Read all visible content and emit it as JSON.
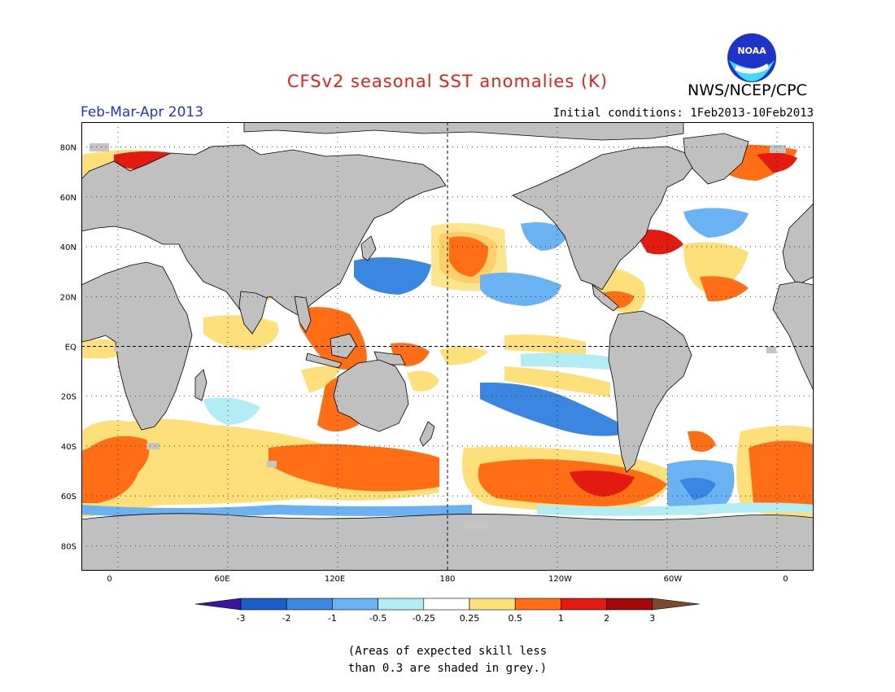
{
  "title": "CFSv2 seasonal SST anomalies (K)",
  "agency": "NWS/NCEP/CPC",
  "logo_text": "NOAA",
  "period": "Feb-Mar-Apr 2013",
  "initial_conditions": "Initial conditions: 1Feb2013-10Feb2013",
  "note_line1": "(Areas of expected skill less",
  "note_line2": "than 0.3 are shaded in grey.)",
  "lat_ticks": [
    {
      "label": "80N",
      "lat": 80
    },
    {
      "label": "60N",
      "lat": 60
    },
    {
      "label": "40N",
      "lat": 40
    },
    {
      "label": "20N",
      "lat": 20
    },
    {
      "label": "EQ",
      "lat": 0
    },
    {
      "label": "20S",
      "lat": -20
    },
    {
      "label": "40S",
      "lat": -40
    },
    {
      "label": "60S",
      "lat": -60
    },
    {
      "label": "80S",
      "lat": -80
    }
  ],
  "lon_ticks": [
    {
      "label": "0",
      "lon": 0
    },
    {
      "label": "60E",
      "lon": 60
    },
    {
      "label": "120E",
      "lon": 120
    },
    {
      "label": "180",
      "lon": 180
    },
    {
      "label": "120W",
      "lon": 240
    },
    {
      "label": "60W",
      "lon": 300
    },
    {
      "label": "0",
      "lon": 360
    }
  ],
  "colorbar": {
    "labels": [
      "-3",
      "-2",
      "-1",
      "-0.5",
      "-0.25",
      "0.25",
      "0.5",
      "1",
      "2",
      "3"
    ],
    "colors": [
      "#3a16a0",
      "#1a5fc8",
      "#3a86e0",
      "#6ab2f2",
      "#b4ecf4",
      "#ffffff",
      "#fde07a",
      "#ff6e14",
      "#e21a10",
      "#a40808",
      "#7a4a2e"
    ]
  },
  "colors": {
    "land": "#c0c0c0",
    "ocean_neutral": "#ffffff",
    "grey_low_skill": "#c4c4c4"
  }
}
